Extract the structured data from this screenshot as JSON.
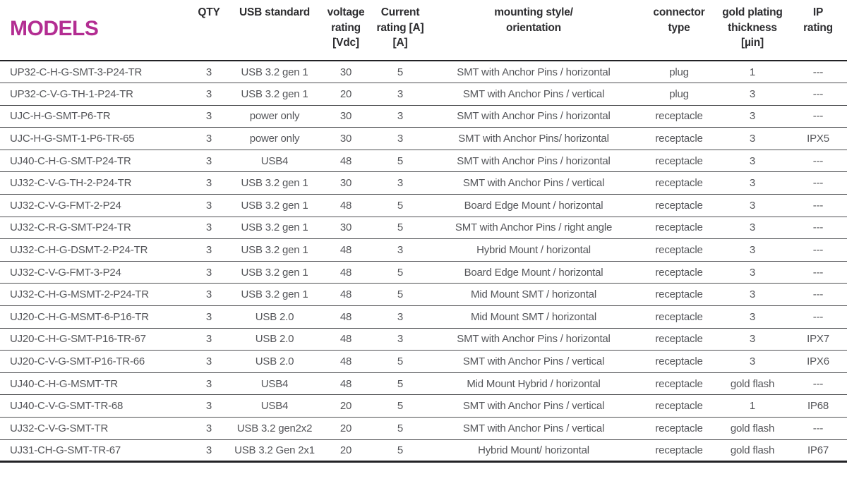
{
  "title": "MODELS",
  "colors": {
    "title_accent": "#b32d92",
    "header_text": "#2d2d30",
    "body_text": "#55565a",
    "rule_line": "#4e4f52",
    "heavy_rule": "#222225"
  },
  "table": {
    "headers": {
      "qty": "QTY",
      "usb_standard": "USB standard",
      "voltage_rating": "voltage\nrating\n[Vdc]",
      "current_rating": "Current\nrating [A]\n[A]",
      "mounting": "mounting style/\norientation",
      "connector_type": "connector\ntype",
      "gold_plating": "gold plating\nthickness\n[µin]",
      "ip_rating": "IP\nrating"
    },
    "col_names": [
      "model-cell",
      "qty-cell",
      "usb-standard-cell",
      "voltage-rating-cell",
      "current-rating-cell",
      "mounting-style-cell",
      "connector-type-cell",
      "gold-plating-cell",
      "ip-rating-cell"
    ],
    "rows": [
      [
        "UP32-C-H-G-SMT-3-P24-TR",
        "3",
        "USB 3.2 gen 1",
        "30",
        "5",
        "SMT with Anchor Pins / horizontal",
        "plug",
        "1",
        "---"
      ],
      [
        "UP32-C-V-G-TH-1-P24-TR",
        "3",
        "USB 3.2 gen 1",
        "20",
        "3",
        "SMT with Anchor Pins / vertical",
        "plug",
        "3",
        "---"
      ],
      [
        "UJC-H-G-SMT-P6-TR",
        "3",
        "power only",
        "30",
        "3",
        "SMT with Anchor Pins / horizontal",
        "receptacle",
        "3",
        "---"
      ],
      [
        "UJC-H-G-SMT-1-P6-TR-65",
        "3",
        "power only",
        "30",
        "3",
        "SMT with Anchor Pins/ horizontal",
        "receptacle",
        "3",
        "IPX5"
      ],
      [
        "UJ40-C-H-G-SMT-P24-TR",
        "3",
        "USB4",
        "48",
        "5",
        "SMT with Anchor Pins / horizontal",
        "receptacle",
        "3",
        "---"
      ],
      [
        "UJ32-C-V-G-TH-2-P24-TR",
        "3",
        "USB 3.2 gen 1",
        "30",
        "3",
        "SMT with Anchor Pins / vertical",
        "receptacle",
        "3",
        "---"
      ],
      [
        "UJ32-C-V-G-FMT-2-P24",
        "3",
        "USB 3.2 gen 1",
        "48",
        "5",
        "Board Edge Mount / horizontal",
        "receptacle",
        "3",
        "---"
      ],
      [
        "UJ32-C-R-G-SMT-P24-TR",
        "3",
        "USB 3.2 gen 1",
        "30",
        "5",
        "SMT with Anchor Pins / right angle",
        "receptacle",
        "3",
        "---"
      ],
      [
        "UJ32-C-H-G-DSMT-2-P24-TR",
        "3",
        "USB 3.2 gen 1",
        "48",
        "3",
        "Hybrid Mount / horizontal",
        "receptacle",
        "3",
        "---"
      ],
      [
        "UJ32-C-V-G-FMT-3-P24",
        "3",
        "USB 3.2 gen 1",
        "48",
        "5",
        "Board Edge Mount / horizontal",
        "receptacle",
        "3",
        "---"
      ],
      [
        "UJ32-C-H-G-MSMT-2-P24-TR",
        "3",
        "USB 3.2 gen 1",
        "48",
        "5",
        "Mid Mount SMT / horizontal",
        "receptacle",
        "3",
        "---"
      ],
      [
        "UJ20-C-H-G-MSMT-6-P16-TR",
        "3",
        "USB 2.0",
        "48",
        "3",
        "Mid Mount SMT / horizontal",
        "receptacle",
        "3",
        "---"
      ],
      [
        "UJ20-C-H-G-SMT-P16-TR-67",
        "3",
        "USB 2.0",
        "48",
        "3",
        "SMT with Anchor Pins / horizontal",
        "receptacle",
        "3",
        "IPX7"
      ],
      [
        "UJ20-C-V-G-SMT-P16-TR-66",
        "3",
        "USB 2.0",
        "48",
        "5",
        "SMT with Anchor Pins / vertical",
        "receptacle",
        "3",
        "IPX6"
      ],
      [
        "UJ40-C-H-G-MSMT-TR",
        "3",
        "USB4",
        "48",
        "5",
        "Mid Mount Hybrid / horizontal",
        "receptacle",
        "gold flash",
        "---"
      ],
      [
        "UJ40-C-V-G-SMT-TR-68",
        "3",
        "USB4",
        "20",
        "5",
        "SMT with Anchor Pins / vertical",
        "receptacle",
        "1",
        "IP68"
      ],
      [
        "UJ32-C-V-G-SMT-TR",
        "3",
        "USB 3.2 gen2x2",
        "20",
        "5",
        "SMT with Anchor Pins / vertical",
        "receptacle",
        "gold flash",
        "---"
      ],
      [
        "UJ31-CH-G-SMT-TR-67",
        "3",
        "USB 3.2 Gen 2x1",
        "20",
        "5",
        "Hybrid Mount/ horizontal",
        "receptacle",
        "gold flash",
        "IP67"
      ]
    ]
  }
}
